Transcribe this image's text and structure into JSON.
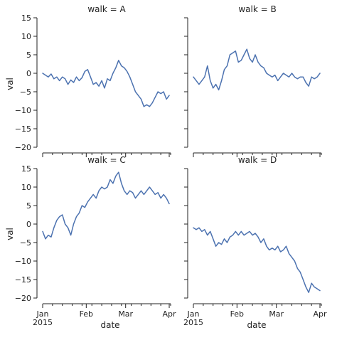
{
  "chart_data": {
    "type": "line",
    "layout": "facet-grid 2x2, shared axes",
    "xlabel": "date",
    "ylabel": "val",
    "x_range": [
      "2015-01-01",
      "2015-04-02"
    ],
    "ylim": [
      -20,
      15
    ],
    "grid": false,
    "line_color": "#4c72b0",
    "y_ticks": [
      -20,
      -15,
      -10,
      -5,
      0,
      5,
      10,
      15
    ],
    "y_tick_labels": [
      "−20",
      "−15",
      "−10",
      "−5",
      "0",
      "5",
      "10",
      "15"
    ],
    "x_ticks": [
      {
        "date": "2015-01-01",
        "label": "Jan",
        "sublabel": "2015"
      },
      {
        "date": "2015-02-01",
        "label": "Feb",
        "sublabel": ""
      },
      {
        "date": "2015-03-01",
        "label": "Mar",
        "sublabel": ""
      },
      {
        "date": "2015-04-01",
        "label": "Apr",
        "sublabel": ""
      }
    ],
    "panels": [
      {
        "title": "walk = A",
        "x": [
          "2015-01-01",
          "2015-01-03",
          "2015-01-05",
          "2015-01-07",
          "2015-01-09",
          "2015-01-11",
          "2015-01-13",
          "2015-01-15",
          "2015-01-17",
          "2015-01-19",
          "2015-01-21",
          "2015-01-23",
          "2015-01-25",
          "2015-01-27",
          "2015-01-29",
          "2015-01-31",
          "2015-02-02",
          "2015-02-04",
          "2015-02-06",
          "2015-02-08",
          "2015-02-10",
          "2015-02-12",
          "2015-02-14",
          "2015-02-16",
          "2015-02-18",
          "2015-02-20",
          "2015-02-22",
          "2015-02-24",
          "2015-02-26",
          "2015-02-28",
          "2015-03-02",
          "2015-03-04",
          "2015-03-06",
          "2015-03-08",
          "2015-03-10",
          "2015-03-12",
          "2015-03-14",
          "2015-03-16",
          "2015-03-18",
          "2015-03-20",
          "2015-03-22",
          "2015-03-24",
          "2015-03-26",
          "2015-03-28",
          "2015-03-30",
          "2015-04-01"
        ],
        "y": [
          0,
          -0.5,
          -1,
          -0.2,
          -1.5,
          -1,
          -2,
          -1,
          -1.5,
          -3,
          -1.8,
          -2.5,
          -1,
          -2,
          -1.2,
          0.5,
          1,
          -1,
          -3,
          -2.5,
          -3.5,
          -2,
          -4,
          -1.5,
          -2,
          0,
          1.5,
          3.5,
          2,
          1.5,
          0.5,
          -1,
          -3,
          -5,
          -6,
          -7,
          -9,
          -8.5,
          -9,
          -8,
          -6.5,
          -5,
          -5.5,
          -5,
          -7,
          -6
        ]
      },
      {
        "title": "walk = B",
        "x": [
          "2015-01-01",
          "2015-01-03",
          "2015-01-05",
          "2015-01-07",
          "2015-01-09",
          "2015-01-11",
          "2015-01-13",
          "2015-01-15",
          "2015-01-17",
          "2015-01-19",
          "2015-01-21",
          "2015-01-23",
          "2015-01-25",
          "2015-01-27",
          "2015-01-29",
          "2015-01-31",
          "2015-02-02",
          "2015-02-04",
          "2015-02-06",
          "2015-02-08",
          "2015-02-10",
          "2015-02-12",
          "2015-02-14",
          "2015-02-16",
          "2015-02-18",
          "2015-02-20",
          "2015-02-22",
          "2015-02-24",
          "2015-02-26",
          "2015-02-28",
          "2015-03-02",
          "2015-03-04",
          "2015-03-06",
          "2015-03-08",
          "2015-03-10",
          "2015-03-12",
          "2015-03-14",
          "2015-03-16",
          "2015-03-18",
          "2015-03-20",
          "2015-03-22",
          "2015-03-24",
          "2015-03-26",
          "2015-03-28",
          "2015-03-30",
          "2015-04-01"
        ],
        "y": [
          -1,
          -2,
          -3,
          -2,
          -1,
          2,
          -2,
          -4,
          -3,
          -4.5,
          -2,
          1,
          2,
          5,
          5.5,
          6,
          3,
          3.5,
          5,
          6.5,
          4,
          3,
          5,
          3,
          2,
          1.5,
          0,
          -0.5,
          -1,
          -0.5,
          -2,
          -1,
          0,
          -0.5,
          -1,
          0,
          -1,
          -1.5,
          -1,
          -1,
          -2.5,
          -3.5,
          -1,
          -1.5,
          -1,
          0
        ]
      },
      {
        "title": "walk = C",
        "x": [
          "2015-01-01",
          "2015-01-03",
          "2015-01-05",
          "2015-01-07",
          "2015-01-09",
          "2015-01-11",
          "2015-01-13",
          "2015-01-15",
          "2015-01-17",
          "2015-01-19",
          "2015-01-21",
          "2015-01-23",
          "2015-01-25",
          "2015-01-27",
          "2015-01-29",
          "2015-01-31",
          "2015-02-02",
          "2015-02-04",
          "2015-02-06",
          "2015-02-08",
          "2015-02-10",
          "2015-02-12",
          "2015-02-14",
          "2015-02-16",
          "2015-02-18",
          "2015-02-20",
          "2015-02-22",
          "2015-02-24",
          "2015-02-26",
          "2015-02-28",
          "2015-03-02",
          "2015-03-04",
          "2015-03-06",
          "2015-03-08",
          "2015-03-10",
          "2015-03-12",
          "2015-03-14",
          "2015-03-16",
          "2015-03-18",
          "2015-03-20",
          "2015-03-22",
          "2015-03-24",
          "2015-03-26",
          "2015-03-28",
          "2015-03-30",
          "2015-04-01"
        ],
        "y": [
          -2,
          -4,
          -3,
          -3.5,
          -1,
          1,
          2,
          2.5,
          0,
          -1,
          -3,
          0,
          2,
          3,
          5,
          4.5,
          6,
          7,
          8,
          7,
          9,
          10,
          9.5,
          10,
          12,
          11,
          13,
          14,
          11,
          9,
          8,
          9,
          8.5,
          7,
          8,
          9,
          8,
          9,
          10,
          9,
          8,
          8.5,
          7,
          8,
          7,
          5.5
        ]
      },
      {
        "title": "walk = D",
        "x": [
          "2015-01-01",
          "2015-01-03",
          "2015-01-05",
          "2015-01-07",
          "2015-01-09",
          "2015-01-11",
          "2015-01-13",
          "2015-01-15",
          "2015-01-17",
          "2015-01-19",
          "2015-01-21",
          "2015-01-23",
          "2015-01-25",
          "2015-01-27",
          "2015-01-29",
          "2015-01-31",
          "2015-02-02",
          "2015-02-04",
          "2015-02-06",
          "2015-02-08",
          "2015-02-10",
          "2015-02-12",
          "2015-02-14",
          "2015-02-16",
          "2015-02-18",
          "2015-02-20",
          "2015-02-22",
          "2015-02-24",
          "2015-02-26",
          "2015-02-28",
          "2015-03-02",
          "2015-03-04",
          "2015-03-06",
          "2015-03-08",
          "2015-03-10",
          "2015-03-12",
          "2015-03-14",
          "2015-03-16",
          "2015-03-18",
          "2015-03-20",
          "2015-03-22",
          "2015-03-24",
          "2015-03-26",
          "2015-03-28",
          "2015-03-30",
          "2015-04-01"
        ],
        "y": [
          -1,
          -1.5,
          -1,
          -2,
          -1.5,
          -3,
          -2,
          -4,
          -6,
          -5,
          -5.5,
          -4,
          -5,
          -3.5,
          -3,
          -2,
          -3,
          -2,
          -3,
          -2.5,
          -2,
          -3,
          -2.5,
          -3.5,
          -5,
          -4,
          -6,
          -7,
          -6.5,
          -7,
          -6,
          -7.5,
          -7,
          -6,
          -8,
          -9,
          -10,
          -12,
          -13,
          -15,
          -17,
          -18.5,
          -16,
          -17,
          -17.5,
          -18
        ]
      }
    ]
  }
}
